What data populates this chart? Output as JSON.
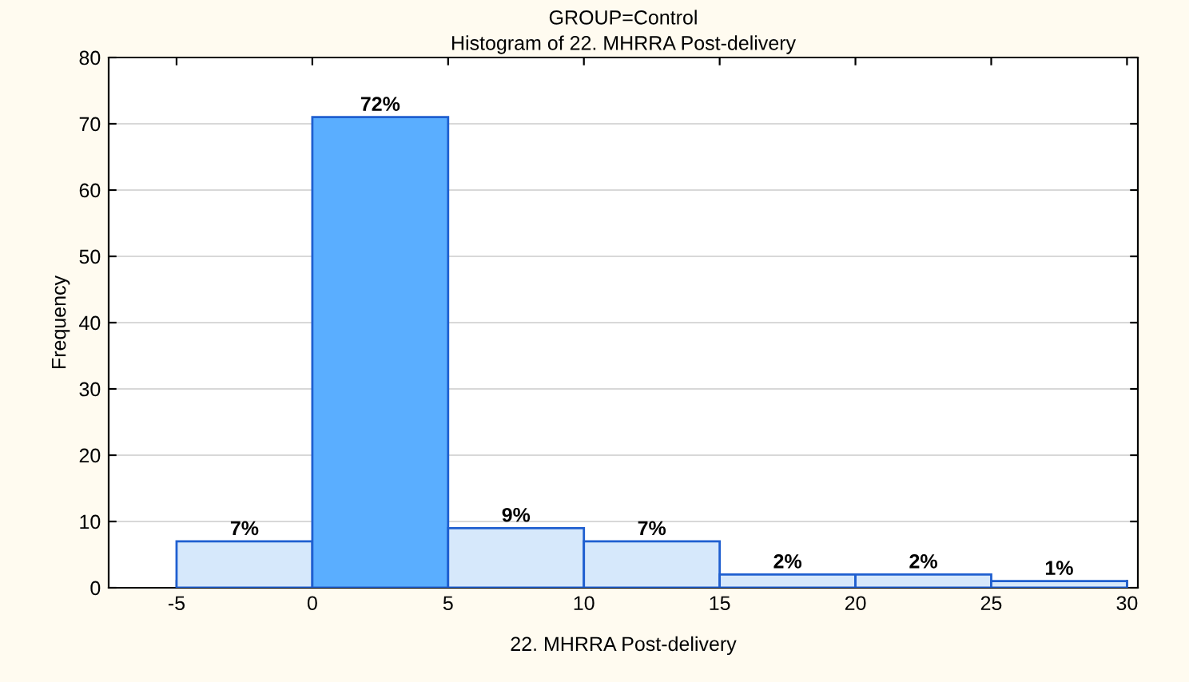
{
  "chart_data": {
    "type": "histogram",
    "title": "GROUP=Control",
    "subtitle": "Histogram of 22. MHRRA Post-delivery",
    "xlabel": "22. MHRRA Post-delivery",
    "ylabel": "Frequency",
    "bins": [
      -5,
      0,
      5,
      10,
      15,
      20,
      25,
      30
    ],
    "values": [
      7,
      71,
      9,
      7,
      2,
      2,
      1
    ],
    "annotations": [
      {
        "text": "7%",
        "x": -2.5,
        "y": 7
      },
      {
        "text": "72%",
        "x": 2.5,
        "y": 71
      },
      {
        "text": "9%",
        "x": 7.5,
        "y": 9
      },
      {
        "text": "7%",
        "x": 12.5,
        "y": 7
      },
      {
        "text": "2%",
        "x": 17.5,
        "y": 2
      },
      {
        "text": "2%",
        "x": 22.5,
        "y": 2
      },
      {
        "text": "1%",
        "x": 27.5,
        "y": 1
      }
    ],
    "colors": [
      "#d6e8fb",
      "#5aaeff",
      "#d6e8fb",
      "#d6e8fb",
      "#d6e8fb",
      "#d6e8fb",
      "#d6e8fb"
    ],
    "xlim": [
      -7.5,
      30.4
    ],
    "xticks": [
      -5,
      0,
      5,
      10,
      15,
      20,
      25,
      30
    ],
    "ylim": [
      0,
      80
    ],
    "yticks": [
      0,
      10,
      20,
      30,
      40,
      50,
      60,
      70,
      80
    ],
    "grid": "y"
  }
}
